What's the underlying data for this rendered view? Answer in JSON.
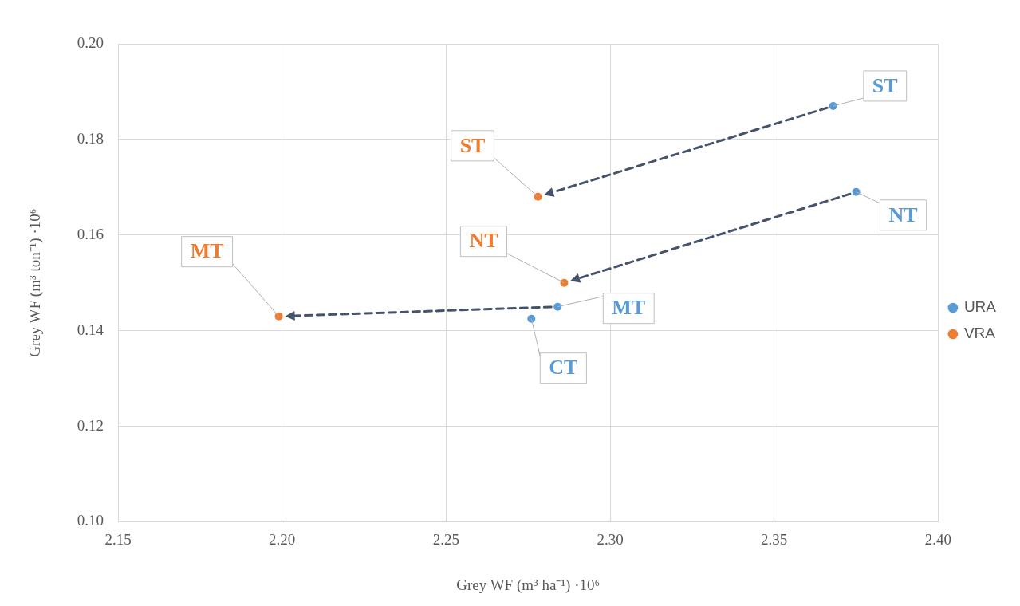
{
  "chart_data": {
    "type": "scatter",
    "xlabel": "Grey WF (m³ ha⁻¹) ·10⁶",
    "ylabel": "Grey WF (m³ ton⁻¹) ·10⁶",
    "series": [
      {
        "name": "URA",
        "color": "#5b9bd5",
        "x": [
          2.368,
          2.375,
          2.284,
          2.276
        ],
        "values": [
          0.187,
          0.169,
          0.145,
          0.1425
        ]
      },
      {
        "name": "VRA",
        "color": "#ed7d31",
        "x": [
          2.278,
          2.286,
          2.199
        ],
        "values": [
          0.168,
          0.15,
          0.143
        ]
      }
    ],
    "xlim": [
      2.15,
      2.4
    ],
    "xticks": [
      {
        "value": 2.15,
        "label": "2.15"
      },
      {
        "value": 2.2,
        "label": "2.20"
      },
      {
        "value": 2.25,
        "label": "2.25"
      },
      {
        "value": 2.3,
        "label": "2.30"
      },
      {
        "value": 2.35,
        "label": "2.35"
      },
      {
        "value": 2.4,
        "label": "2.40"
      }
    ],
    "ylim": [
      0.1,
      0.2
    ],
    "yticks": [
      {
        "value": 0.1,
        "label": "0.10"
      },
      {
        "value": 0.12,
        "label": "0.12"
      },
      {
        "value": 0.14,
        "label": "0.14"
      },
      {
        "value": 0.16,
        "label": "0.16"
      },
      {
        "value": 0.18,
        "label": "0.18"
      },
      {
        "value": 0.2,
        "label": "0.20"
      }
    ],
    "annotations": [
      {
        "text": "ST",
        "x": 2.368,
        "y": 0.187
      },
      {
        "text": "NT",
        "x": 2.375,
        "y": 0.169
      },
      {
        "text": "MT",
        "x": 2.284,
        "y": 0.145
      },
      {
        "text": "CT",
        "x": 2.276,
        "y": 0.1425
      },
      {
        "text": "ST",
        "x": 2.278,
        "y": 0.168
      },
      {
        "text": "NT",
        "x": 2.286,
        "y": 0.15
      },
      {
        "text": "MT",
        "x": 2.199,
        "y": 0.143
      }
    ],
    "grid": true,
    "legend": "right",
    "marker": "circle"
  }
}
